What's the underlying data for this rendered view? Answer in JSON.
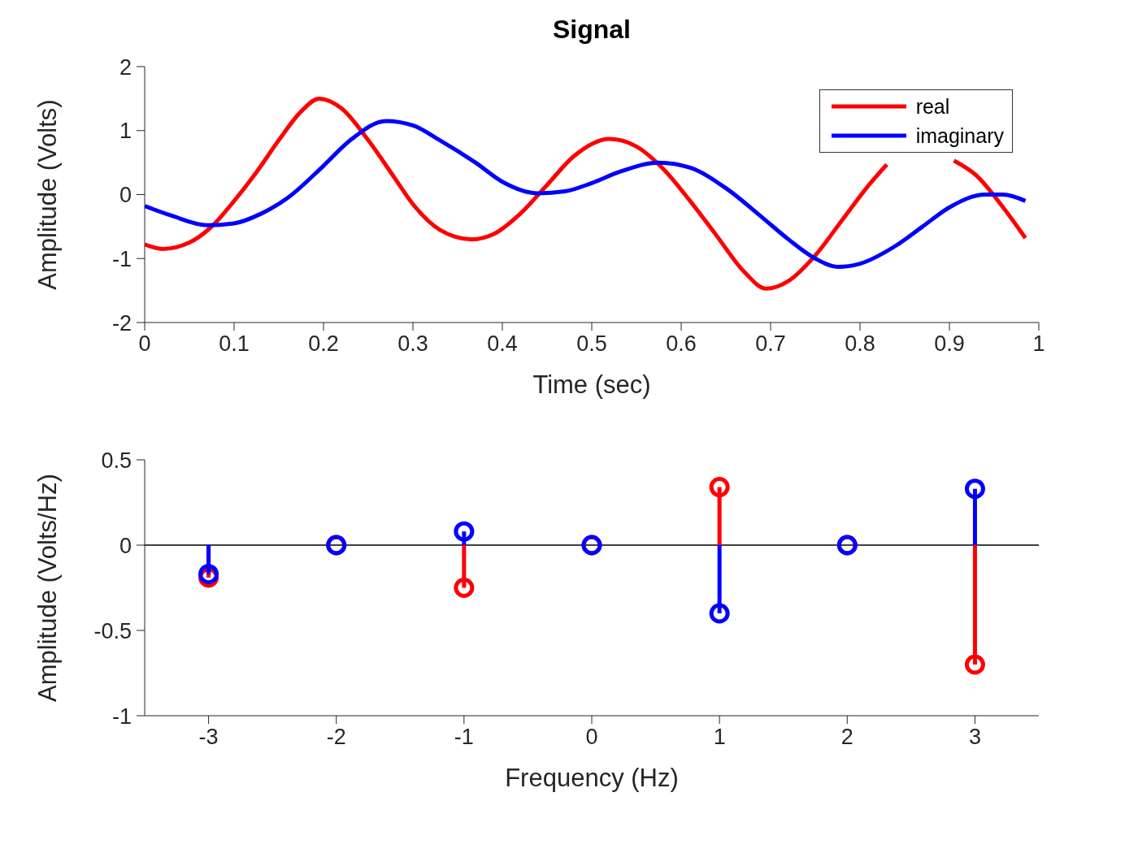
{
  "chart_data": [
    {
      "type": "line",
      "title": "Signal",
      "xlabel": "Time (sec)",
      "ylabel": "Amplitude (Volts)",
      "xlim": [
        0,
        1
      ],
      "xticks": [
        0,
        0.1,
        0.2,
        0.3,
        0.4,
        0.5,
        0.6,
        0.7,
        0.8,
        0.9,
        1
      ],
      "ylim": [
        -2,
        2
      ],
      "yticks": [
        -2,
        -1,
        0,
        1,
        2
      ],
      "legend": "top right",
      "line_style": "solid",
      "series": [
        {
          "name": "real",
          "color": "#ff0000",
          "x": [
            0,
            0.02,
            0.05,
            0.075,
            0.1,
            0.125,
            0.15,
            0.175,
            0.195,
            0.22,
            0.25,
            0.28,
            0.3,
            0.33,
            0.366,
            0.39,
            0.42,
            0.45,
            0.48,
            0.52,
            0.55,
            0.58,
            0.61,
            0.64,
            0.67,
            0.695,
            0.72,
            0.75,
            0.78,
            0.81,
            0.83,
            0.865,
            0.905,
            0.93,
            0.96,
            0.985
          ],
          "values": [
            -0.78,
            -0.85,
            -0.75,
            -0.5,
            -0.1,
            0.35,
            0.85,
            1.3,
            1.5,
            1.35,
            0.85,
            0.25,
            -0.15,
            -0.55,
            -0.7,
            -0.62,
            -0.3,
            0.15,
            0.6,
            0.87,
            0.75,
            0.4,
            -0.1,
            -0.65,
            -1.2,
            -1.47,
            -1.35,
            -0.95,
            -0.4,
            0.15,
            0.47,
            null,
            0.53,
            0.3,
            -0.2,
            -0.68
          ]
        },
        {
          "name": "imaginary",
          "color": "#0000ff",
          "x": [
            0,
            0.03,
            0.07,
            0.1,
            0.13,
            0.16,
            0.2,
            0.23,
            0.27,
            0.3,
            0.33,
            0.37,
            0.4,
            0.44,
            0.47,
            0.5,
            0.53,
            0.575,
            0.61,
            0.65,
            0.69,
            0.72,
            0.75,
            0.775,
            0.8,
            0.84,
            0.87,
            0.9,
            0.94,
            0.96,
            0.985
          ],
          "values": [
            -0.18,
            -0.33,
            -0.48,
            -0.45,
            -0.3,
            -0.05,
            0.45,
            0.85,
            1.15,
            1.08,
            0.85,
            0.5,
            0.2,
            0.02,
            0.05,
            0.18,
            0.35,
            0.5,
            0.42,
            0.1,
            -0.35,
            -0.7,
            -1.0,
            -1.13,
            -1.08,
            -0.8,
            -0.5,
            -0.2,
            0.0,
            0.0,
            -0.1
          ]
        }
      ]
    },
    {
      "type": "lollipop",
      "xlabel": "Frequency (Hz)",
      "ylabel": "Amplitude (Volts/Hz)",
      "x": [
        -3,
        -2,
        -1,
        0,
        1,
        2,
        3
      ],
      "xlim": [
        -3.5,
        3.5
      ],
      "xticks": [
        -3,
        -2,
        -1,
        0,
        1,
        2,
        3
      ],
      "ylim": [
        -1,
        0.5
      ],
      "yticks": [
        -1,
        -0.5,
        0,
        0.5
      ],
      "marker": "circle",
      "ref_lines": [
        {
          "axis": "y",
          "value": 0,
          "color": "#000000"
        }
      ],
      "series": [
        {
          "color": "#ff0000",
          "values": [
            -0.19,
            0,
            -0.25,
            0,
            0.34,
            0,
            -0.7
          ]
        },
        {
          "color": "#0000ff",
          "values": [
            -0.17,
            0,
            0.08,
            0,
            -0.4,
            0,
            0.33
          ]
        }
      ]
    }
  ]
}
